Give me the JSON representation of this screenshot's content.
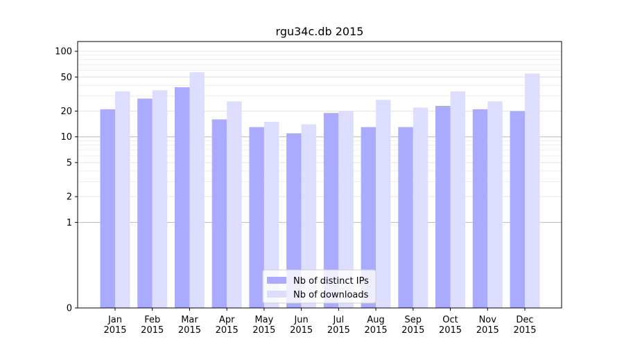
{
  "chart_data": {
    "type": "bar",
    "title": "rgu34c.db 2015",
    "xlabel": "",
    "ylabel": "",
    "y_scale": "symlog",
    "ylim": [
      0,
      130
    ],
    "y_ticks": [
      0,
      1,
      2,
      5,
      10,
      20,
      50,
      100
    ],
    "y_tick_labels": [
      "0",
      "1",
      "2",
      "5",
      "10",
      "20",
      "50",
      "100"
    ],
    "categories": [
      "Jan\n2015",
      "Feb\n2015",
      "Mar\n2015",
      "Apr\n2015",
      "May\n2015",
      "Jun\n2015",
      "Jul\n2015",
      "Aug\n2015",
      "Sep\n2015",
      "Oct\n2015",
      "Nov\n2015",
      "Dec\n2015"
    ],
    "series": [
      {
        "name": "Nb of distinct IPs",
        "color": "#aaaaff",
        "values": [
          21,
          28,
          38,
          16,
          13,
          11,
          19,
          13,
          13,
          23,
          21,
          20
        ]
      },
      {
        "name": "Nb of downloads",
        "color": "#ddddff",
        "values": [
          34,
          35,
          57,
          26,
          15,
          14,
          20,
          27,
          22,
          34,
          26,
          55
        ]
      }
    ],
    "reference_lines": [
      1,
      10
    ],
    "grid": true,
    "legend_position": "lower center"
  }
}
